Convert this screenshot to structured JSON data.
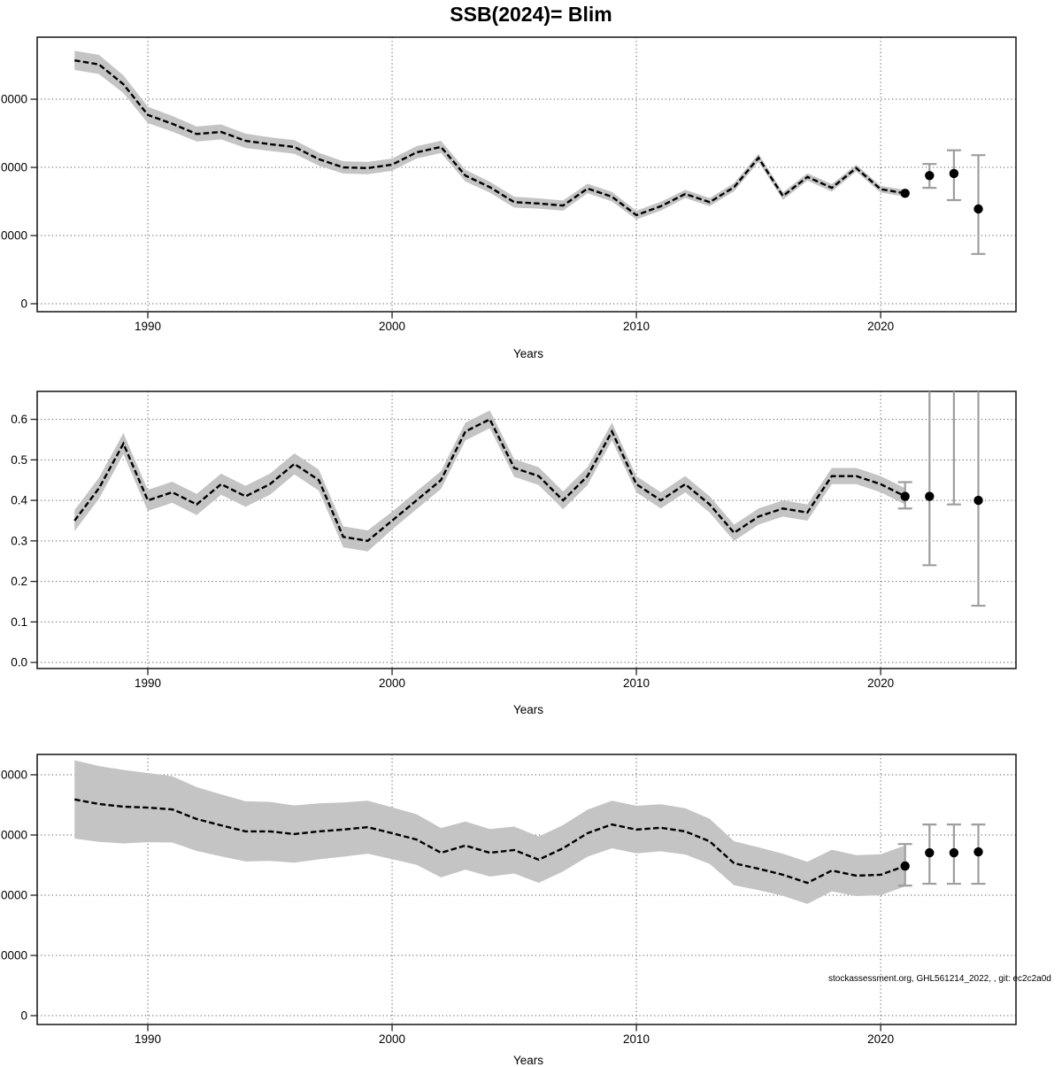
{
  "title": "SSB(2024)= Blim",
  "footer_note": "stockassessment.org, GHL561214_2022,  , git: ec2c2a0d",
  "axis": {
    "xlabel": "Years"
  },
  "colors": {
    "band": "#c4c4c4",
    "line": "#000000",
    "dot": "#000000",
    "errorbar": "#9e9e9e",
    "grid": "#555555",
    "border": "#222222",
    "tick_text": "#000000"
  },
  "chart_data": [
    {
      "type": "line",
      "name": "upper-panel-catch",
      "x_range": [
        1985.47,
        2025.54
      ],
      "y_range": [
        -1170,
        39100
      ],
      "grid": true,
      "legend": "none",
      "xticks": {
        "values": [
          1990,
          2000,
          2010,
          2020
        ],
        "labels": [
          "1990",
          "2000",
          "2010",
          "2020"
        ]
      },
      "yticks": {
        "values": [
          0,
          10000,
          20000,
          30000
        ],
        "labels_visible": [
          "0",
          "0000",
          "0000",
          "0000"
        ]
      },
      "x": [
        1987,
        1988,
        1989,
        1990,
        1991,
        1992,
        1993,
        1994,
        1995,
        1996,
        1997,
        1998,
        1999,
        2000,
        2001,
        2002,
        2003,
        2004,
        2005,
        2006,
        2007,
        2008,
        2009,
        2010,
        2011,
        2012,
        2013,
        2014,
        2015,
        2016,
        2017,
        2018,
        2019,
        2020,
        2021
      ],
      "values": [
        35700,
        35100,
        32200,
        27700,
        26400,
        24900,
        25200,
        23900,
        23400,
        23000,
        21200,
        20000,
        19900,
        20400,
        22200,
        23000,
        18800,
        17100,
        14900,
        14700,
        14400,
        16900,
        15700,
        13000,
        14300,
        16100,
        14900,
        17100,
        21400,
        15800,
        18600,
        17000,
        19900,
        16800,
        16200
      ],
      "hi": [
        37100,
        36500,
        33500,
        28900,
        27550,
        26000,
        26300,
        24950,
        24400,
        24000,
        22150,
        20900,
        20800,
        21300,
        23100,
        23900,
        19650,
        17900,
        15700,
        15450,
        15150,
        17600,
        16400,
        13650,
        14950,
        16700,
        15500,
        17700,
        22000,
        16350,
        19150,
        17550,
        20400,
        17300,
        16700
      ],
      "lo": [
        34300,
        33700,
        30900,
        26500,
        25250,
        23800,
        24100,
        22850,
        22400,
        22000,
        20250,
        19100,
        19000,
        19500,
        21300,
        22100,
        17950,
        16300,
        14100,
        13950,
        13650,
        16200,
        15000,
        12350,
        13650,
        15500,
        14300,
        16500,
        20800,
        15250,
        18050,
        16450,
        19400,
        16300,
        15700
      ],
      "forecast": [
        {
          "year": 2021,
          "value": 16200,
          "dot": true
        },
        {
          "year": 2022,
          "value": 18800,
          "lo": 17000,
          "hi": 20500,
          "dot": true
        },
        {
          "year": 2023,
          "value": 19100,
          "lo": 15200,
          "hi": 22500,
          "dot": true
        },
        {
          "year": 2024,
          "value": 13900,
          "lo": 7300,
          "hi": 21800,
          "dot": true
        }
      ]
    },
    {
      "type": "line",
      "name": "middle-panel-fbar",
      "x_range": [
        1985.47,
        2025.54
      ],
      "y_range": [
        -0.015,
        0.669
      ],
      "grid": true,
      "legend": "none",
      "xticks": {
        "values": [
          1990,
          2000,
          2010,
          2020
        ],
        "labels": [
          "1990",
          "2000",
          "2010",
          "2020"
        ]
      },
      "yticks": {
        "values": [
          0.0,
          0.1,
          0.2,
          0.3,
          0.4,
          0.5,
          0.6
        ],
        "labels_visible": [
          "0.0",
          "0.1",
          "0.2",
          "0.3",
          "0.4",
          "0.5",
          "0.6"
        ]
      },
      "x": [
        1987,
        1988,
        1989,
        1990,
        1991,
        1992,
        1993,
        1994,
        1995,
        1996,
        1997,
        1998,
        1999,
        2000,
        2001,
        2002,
        2003,
        2004,
        2005,
        2006,
        2007,
        2008,
        2009,
        2010,
        2011,
        2012,
        2013,
        2014,
        2015,
        2016,
        2017,
        2018,
        2019,
        2020,
        2021
      ],
      "values": [
        0.35,
        0.43,
        0.54,
        0.4,
        0.42,
        0.39,
        0.44,
        0.41,
        0.44,
        0.49,
        0.45,
        0.31,
        0.3,
        0.35,
        0.4,
        0.45,
        0.57,
        0.6,
        0.48,
        0.46,
        0.4,
        0.46,
        0.57,
        0.44,
        0.4,
        0.44,
        0.39,
        0.32,
        0.36,
        0.38,
        0.37,
        0.46,
        0.46,
        0.44,
        0.41
      ],
      "hi": [
        0.376,
        0.456,
        0.566,
        0.426,
        0.446,
        0.416,
        0.466,
        0.436,
        0.466,
        0.516,
        0.476,
        0.336,
        0.326,
        0.372,
        0.422,
        0.472,
        0.592,
        0.622,
        0.502,
        0.482,
        0.422,
        0.482,
        0.592,
        0.46,
        0.42,
        0.46,
        0.41,
        0.34,
        0.38,
        0.4,
        0.39,
        0.48,
        0.48,
        0.46,
        0.43
      ],
      "lo": [
        0.324,
        0.404,
        0.514,
        0.374,
        0.394,
        0.364,
        0.414,
        0.384,
        0.414,
        0.464,
        0.424,
        0.284,
        0.274,
        0.328,
        0.378,
        0.428,
        0.548,
        0.578,
        0.458,
        0.438,
        0.378,
        0.438,
        0.548,
        0.42,
        0.38,
        0.42,
        0.37,
        0.3,
        0.34,
        0.36,
        0.35,
        0.44,
        0.44,
        0.42,
        0.39
      ],
      "forecast": [
        {
          "year": 2021,
          "value": 0.41,
          "lo": 0.38,
          "hi": 0.445,
          "dot": true
        },
        {
          "year": 2022,
          "value": 0.41,
          "lo": 0.24,
          "hi": 0.68,
          "hi_open": true,
          "dot": true
        },
        {
          "year": 2023,
          "lo": 0.39,
          "hi": 0.68,
          "hi_open": true,
          "dot": false
        },
        {
          "year": 2024,
          "value": 0.4,
          "lo": 0.14,
          "hi": 0.68,
          "hi_open": true,
          "dot": true
        }
      ]
    },
    {
      "type": "line",
      "name": "lower-panel-ssb",
      "x_range": [
        1985.47,
        2025.54
      ],
      "y_range": [
        -2940,
        86760
      ],
      "grid": true,
      "legend": "none",
      "xticks": {
        "values": [
          1990,
          2000,
          2010,
          2020
        ],
        "labels": [
          "1990",
          "2000",
          "2010",
          "2020"
        ]
      },
      "yticks": {
        "values": [
          0,
          20000,
          40000,
          60000,
          80000
        ],
        "labels_visible": [
          "0",
          "0000",
          "0000",
          "0000",
          "0000"
        ]
      },
      "x": [
        1987,
        1988,
        1989,
        1990,
        1991,
        1992,
        1993,
        1994,
        1995,
        1996,
        1997,
        1998,
        1999,
        2000,
        2001,
        2002,
        2003,
        2004,
        2005,
        2006,
        2007,
        2008,
        2009,
        2010,
        2011,
        2012,
        2013,
        2014,
        2015,
        2016,
        2017,
        2018,
        2019,
        2020,
        2021
      ],
      "values": [
        71800,
        70300,
        69400,
        69100,
        68500,
        65300,
        63200,
        61200,
        61200,
        60300,
        61200,
        61800,
        62600,
        60600,
        58500,
        54100,
        56500,
        54100,
        55000,
        51800,
        55600,
        60600,
        63500,
        61800,
        62400,
        61200,
        57900,
        50600,
        48800,
        46800,
        44100,
        48200,
        46500,
        46800,
        49700
      ],
      "hi": [
        84800,
        82900,
        81600,
        80600,
        79500,
        75900,
        73500,
        71200,
        71000,
        69800,
        70500,
        70800,
        71400,
        69200,
        66900,
        62300,
        64500,
        62000,
        62800,
        59500,
        63300,
        68400,
        71400,
        69700,
        70200,
        68900,
        65400,
        57900,
        55900,
        53800,
        51100,
        55100,
        53300,
        53600,
        56500
      ],
      "lo": [
        58800,
        57700,
        57200,
        57600,
        57500,
        54700,
        52900,
        51200,
        51400,
        50800,
        51900,
        52800,
        53800,
        52000,
        50100,
        45900,
        48500,
        46200,
        47200,
        44100,
        47900,
        52800,
        55600,
        53900,
        54600,
        53500,
        50400,
        43300,
        41700,
        39800,
        37100,
        41300,
        39700,
        40000,
        42900
      ],
      "forecast": [
        {
          "year": 2021,
          "value": 49700,
          "lo": 43200,
          "hi": 57000,
          "dot": true
        },
        {
          "year": 2022,
          "value": 54100,
          "lo": 43800,
          "hi": 63500,
          "dot": true
        },
        {
          "year": 2023,
          "value": 54100,
          "lo": 43800,
          "hi": 63500,
          "dot": true
        },
        {
          "year": 2024,
          "value": 54400,
          "lo": 43800,
          "hi": 63500,
          "dot": true
        }
      ]
    }
  ]
}
